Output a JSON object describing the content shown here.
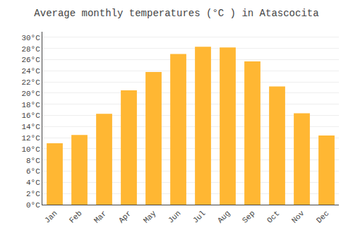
{
  "chart_data": {
    "type": "bar",
    "title": "Average monthly temperatures (°C ) in Atascocita",
    "categories": [
      "Jan",
      "Feb",
      "Mar",
      "Apr",
      "May",
      "Jun",
      "Jul",
      "Aug",
      "Sep",
      "Oct",
      "Nov",
      "Dec"
    ],
    "values": [
      11,
      12.5,
      16.3,
      20.5,
      23.8,
      27,
      28.3,
      28.2,
      25.7,
      21.2,
      16.4,
      12.4
    ],
    "color": "#FFB733",
    "ylim": [
      0,
      31
    ],
    "yticks": [
      {
        "value": 0,
        "label": "0°C"
      },
      {
        "value": 2,
        "label": "2°C"
      },
      {
        "value": 4,
        "label": "4°C"
      },
      {
        "value": 6,
        "label": "6°C"
      },
      {
        "value": 8,
        "label": "8°C"
      },
      {
        "value": 10,
        "label": "10°C"
      },
      {
        "value": 12,
        "label": "12°C"
      },
      {
        "value": 14,
        "label": "14°C"
      },
      {
        "value": 16,
        "label": "16°C"
      },
      {
        "value": 18,
        "label": "18°C"
      },
      {
        "value": 20,
        "label": "20°C"
      },
      {
        "value": 22,
        "label": "22°C"
      },
      {
        "value": 24,
        "label": "24°C"
      },
      {
        "value": 26,
        "label": "26°C"
      },
      {
        "value": 28,
        "label": "28°C"
      },
      {
        "value": 30,
        "label": "30°C"
      }
    ],
    "grid": true
  }
}
